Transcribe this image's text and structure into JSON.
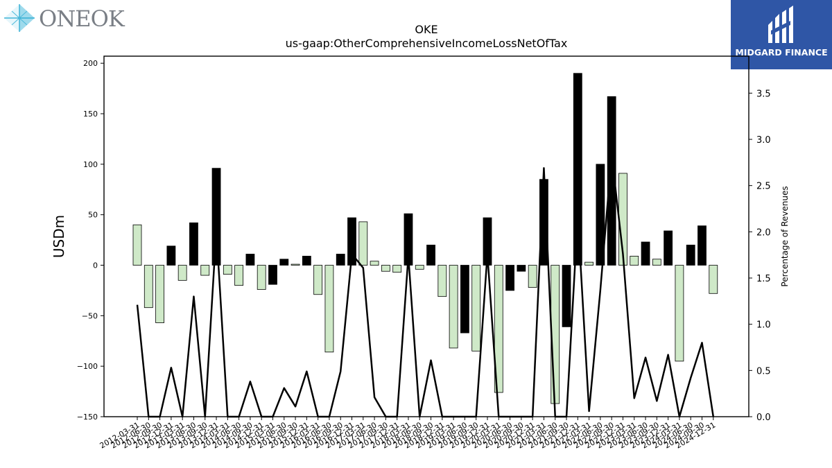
{
  "logos": {
    "left_brand": "ONEOK",
    "right_brand": "MIDGARD FINANCE"
  },
  "chart_data": {
    "type": "bar",
    "title": "OKE",
    "subtitle": "us-gaap:OtherComprehensiveIncomeLossNetOfTax",
    "ylabel": "USDm",
    "y2label": "Percentage of Revenues",
    "ylim": [
      -150,
      207
    ],
    "y2lim": [
      0.0,
      3.9
    ],
    "yticks": [
      -150,
      -100,
      -50,
      0,
      50,
      100,
      150,
      200
    ],
    "y2ticks": [
      0.0,
      0.5,
      1.0,
      1.5,
      2.0,
      2.5,
      3.0,
      3.5
    ],
    "categories": [
      "2012-03-31",
      "2012-06-30",
      "2012-09-30",
      "2012-12-31",
      "2013-03-31",
      "2013-06-30",
      "2013-09-30",
      "2013-12-31",
      "2014-03-31",
      "2014-06-30",
      "2014-09-30",
      "2014-12-31",
      "2015-03-31",
      "2015-06-30",
      "2015-09-30",
      "2015-12-31",
      "2016-03-31",
      "2016-06-30",
      "2016-09-30",
      "2016-12-31",
      "2017-03-31",
      "2017-06-30",
      "2017-09-30",
      "2017-12-31",
      "2018-03-31",
      "2018-06-30",
      "2018-09-30",
      "2018-12-31",
      "2019-03-31",
      "2019-06-30",
      "2019-09-30",
      "2019-12-31",
      "2020-03-31",
      "2020-06-30",
      "2020-09-30",
      "2020-12-31",
      "2021-03-31",
      "2021-06-30",
      "2021-09-30",
      "2021-12-31",
      "2022-03-31",
      "2022-06-30",
      "2022-09-30",
      "2022-12-31",
      "2023-03-31",
      "2023-06-30",
      "2023-09-30",
      "2023-12-31",
      "2024-03-31",
      "2024-06-30",
      "2024-09-30",
      "2024-12-31"
    ],
    "xtick_labels": [
      "2012-03-31",
      "2012-06-30",
      "2012-09-30",
      "2012-12-31",
      "2013-03-31",
      "2013-06-30",
      "2013-09-30",
      "2013-12-31",
      "2014-03-31",
      "2014-06-30",
      "2014-09-30",
      "2014-12-31",
      "2015-03-31",
      "2015-06-30",
      "2015-09-30",
      "2015-12-31",
      "2016-03-31",
      "2016-06-30",
      "2016-09-30",
      "2016-12-31",
      "2017-03-31",
      "2017-06-30",
      "2017-09-30",
      "2017-12-31",
      "2018-03-31",
      "2018-06-30",
      "2018-09-30",
      "2018-12-31",
      "2019-03-31",
      "2019-06-30",
      "2019-09-30",
      "2019-12-31",
      "2020-03-31",
      "2020-06-30",
      "2020-09-30",
      "2020-12-31",
      "2021-03-31",
      "2021-06-30",
      "2021-09-30",
      "2021-12-31",
      "2022-03-31",
      "2022-06-30",
      "2022-09-30",
      "2022-12-31",
      "2023-03-31",
      "2023-06-30",
      "2023-09-30",
      "2023-12-31",
      "2024-03-31",
      "2024-06-30",
      "2024-09-30",
      "2024-12-31"
    ],
    "series": [
      {
        "values": [
          40,
          -42,
          -57,
          19,
          -15,
          42,
          -10,
          96,
          -9,
          -20,
          11,
          -24,
          -19,
          6,
          1,
          9,
          -29,
          -86,
          11,
          47,
          43,
          4,
          -6,
          -7,
          51,
          -4,
          20,
          -31,
          -82,
          -67,
          -85,
          47,
          -126,
          -25,
          -6,
          -22,
          85,
          -137,
          -61,
          190,
          3,
          100,
          167,
          91,
          9,
          23,
          6,
          34,
          -95,
          20,
          39,
          -28
        ]
      },
      {
        "type": "line",
        "axis": "right",
        "values": [
          1.21,
          0.0,
          0.0,
          0.53,
          0.0,
          1.3,
          0.0,
          2.02,
          0.0,
          0.0,
          0.38,
          0.0,
          0.0,
          0.31,
          0.11,
          0.49,
          0.0,
          0.0,
          0.49,
          1.76,
          1.61,
          0.21,
          0.0,
          0.0,
          1.74,
          0.0,
          0.61,
          0.0,
          0.0,
          0.0,
          0.0,
          1.76,
          0.0,
          0.0,
          0.0,
          0.0,
          2.69,
          0.0,
          0.0,
          2.17,
          0.06,
          1.37,
          2.83,
          1.76,
          0.2,
          0.64,
          0.17,
          0.67,
          0.0,
          0.42,
          0.8,
          0.0
        ]
      }
    ],
    "colors": {
      "positive_change": "#000000",
      "negative_change": "#cfe9c8",
      "line": "#000000"
    },
    "grid": false
  }
}
